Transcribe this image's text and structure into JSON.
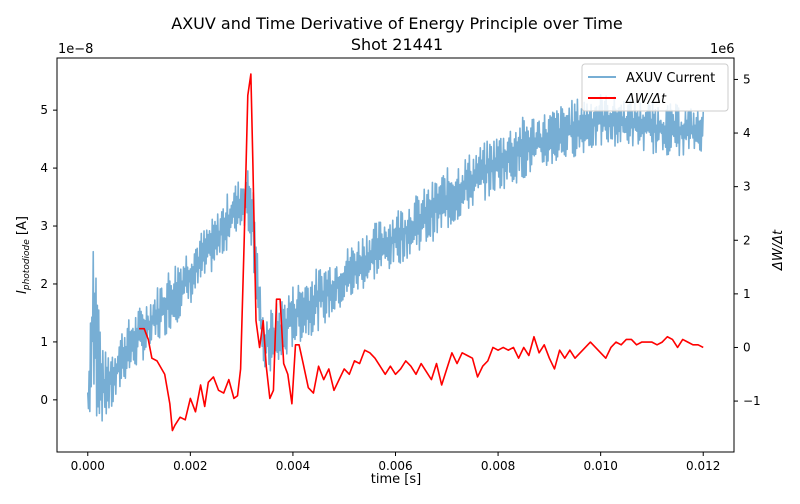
{
  "chart_data": {
    "type": "line",
    "title": "AXUV and Time Derivative of Energy Principle over Time",
    "subtitle": "Shot 21441",
    "xlabel": "time [s]",
    "ylabel": "I_photodiode [A]",
    "ylabel_main": "I",
    "ylabel_sub": "photodiode",
    "ylabel_unit": " [A]",
    "y2label": "ΔW/Δt",
    "y_offset_text": "1e−8",
    "y2_offset_text": "1e6",
    "xlim": [
      -0.0006,
      0.0126
    ],
    "ylim": [
      -0.9,
      5.9
    ],
    "y2lim": [
      -1.95,
      5.4
    ],
    "x_ticks": [
      0.0,
      0.002,
      0.004,
      0.006,
      0.008,
      0.01,
      0.012
    ],
    "x_tick_labels": [
      "0.000",
      "0.002",
      "0.004",
      "0.006",
      "0.008",
      "0.010",
      "0.012"
    ],
    "y_ticks": [
      0,
      1,
      2,
      3,
      4,
      5
    ],
    "y_tick_labels": [
      "0",
      "1",
      "2",
      "3",
      "4",
      "5"
    ],
    "y2_ticks": [
      -1,
      0,
      1,
      2,
      3,
      4,
      5
    ],
    "y2_tick_labels": [
      "−1",
      "0",
      "1",
      "2",
      "3",
      "4",
      "5"
    ],
    "legend_position": "top-right",
    "grid": false,
    "series": [
      {
        "name": "AXUV Current",
        "axis": "left",
        "color": "#77aed4",
        "style": "noisy-band",
        "x": [
          0.0,
          0.0001,
          0.0003,
          0.0005,
          0.0007,
          0.001,
          0.0013,
          0.0016,
          0.0019,
          0.0022,
          0.0025,
          0.0028,
          0.003,
          0.0031,
          0.0032,
          0.0034,
          0.0036,
          0.0038,
          0.004,
          0.0045,
          0.005,
          0.0055,
          0.006,
          0.0065,
          0.007,
          0.0075,
          0.008,
          0.0085,
          0.009,
          0.0095,
          0.01,
          0.0105,
          0.011,
          0.0115,
          0.012
        ],
        "low": [
          -0.45,
          -0.35,
          -0.4,
          -0.2,
          0.3,
          0.6,
          0.9,
          1.2,
          1.5,
          1.9,
          2.3,
          2.7,
          3.0,
          3.0,
          2.6,
          0.5,
          0.4,
          0.6,
          0.9,
          1.2,
          1.6,
          2.0,
          2.3,
          2.6,
          2.9,
          3.3,
          3.6,
          3.8,
          4.0,
          4.2,
          4.35,
          4.4,
          4.25,
          4.2,
          4.3
        ],
        "high": [
          0.3,
          3.3,
          0.8,
          1.0,
          1.3,
          1.6,
          1.9,
          2.3,
          2.6,
          2.9,
          3.2,
          3.7,
          3.85,
          4.0,
          4.0,
          1.5,
          1.6,
          1.8,
          2.0,
          2.3,
          2.6,
          3.0,
          3.3,
          3.6,
          4.0,
          4.3,
          4.6,
          4.9,
          5.0,
          5.2,
          5.3,
          5.2,
          5.15,
          5.1,
          5.0
        ]
      },
      {
        "name": "ΔW/Δt",
        "axis": "right",
        "color": "#ff0000",
        "x": [
          0.001,
          0.0011,
          0.00118,
          0.00125,
          0.00135,
          0.0015,
          0.0016,
          0.00165,
          0.0017,
          0.0018,
          0.0019,
          0.002,
          0.0021,
          0.0022,
          0.00228,
          0.00235,
          0.00245,
          0.00255,
          0.00265,
          0.00275,
          0.00285,
          0.00292,
          0.00298,
          0.00305,
          0.00312,
          0.00318,
          0.00322,
          0.00328,
          0.00335,
          0.00342,
          0.00348,
          0.00355,
          0.00362,
          0.00368,
          0.00375,
          0.00382,
          0.0039,
          0.00398,
          0.00405,
          0.00412,
          0.0042,
          0.0043,
          0.0044,
          0.0045,
          0.0046,
          0.0047,
          0.0048,
          0.0049,
          0.005,
          0.0051,
          0.0052,
          0.0053,
          0.0054,
          0.0055,
          0.0056,
          0.0057,
          0.0058,
          0.0059,
          0.006,
          0.0061,
          0.0062,
          0.0063,
          0.0064,
          0.0065,
          0.0066,
          0.0067,
          0.0068,
          0.0069,
          0.007,
          0.0071,
          0.0072,
          0.0073,
          0.0074,
          0.0075,
          0.0076,
          0.0077,
          0.0078,
          0.0079,
          0.008,
          0.0081,
          0.0082,
          0.0083,
          0.0084,
          0.0085,
          0.0086,
          0.0087,
          0.0088,
          0.0089,
          0.009,
          0.0091,
          0.0092,
          0.0093,
          0.0094,
          0.0095,
          0.0096,
          0.0097,
          0.0098,
          0.0099,
          0.01,
          0.0101,
          0.0102,
          0.0103,
          0.0104,
          0.0105,
          0.0106,
          0.0107,
          0.0108,
          0.0109,
          0.011,
          0.0111,
          0.0112,
          0.0113,
          0.0114,
          0.0115,
          0.0116,
          0.0117,
          0.0118,
          0.0119,
          0.012
        ],
        "y": [
          0.35,
          0.35,
          0.15,
          -0.2,
          -0.25,
          -0.5,
          -1.05,
          -1.55,
          -1.45,
          -1.3,
          -1.35,
          -0.95,
          -1.2,
          -0.7,
          -1.1,
          -0.65,
          -0.55,
          -0.8,
          -0.85,
          -0.6,
          -0.95,
          -0.9,
          -0.4,
          2.0,
          4.7,
          5.1,
          3.4,
          0.5,
          0.0,
          0.5,
          -0.35,
          -0.95,
          -0.8,
          0.9,
          0.9,
          -0.3,
          -0.5,
          -1.05,
          0.05,
          0.05,
          -0.3,
          -0.75,
          -0.85,
          -0.35,
          -0.6,
          -0.4,
          -0.8,
          -0.6,
          -0.4,
          -0.5,
          -0.25,
          -0.3,
          -0.05,
          -0.1,
          -0.2,
          -0.35,
          -0.5,
          -0.35,
          -0.5,
          -0.4,
          -0.25,
          -0.35,
          -0.5,
          -0.3,
          -0.45,
          -0.6,
          -0.3,
          -0.7,
          -0.4,
          -0.1,
          -0.3,
          -0.1,
          -0.15,
          -0.2,
          -0.55,
          -0.35,
          -0.25,
          0.0,
          -0.05,
          0.0,
          -0.05,
          0.0,
          -0.2,
          0.0,
          -0.15,
          0.2,
          -0.1,
          0.05,
          -0.2,
          -0.4,
          -0.05,
          -0.2,
          -0.05,
          -0.2,
          -0.1,
          0.0,
          0.1,
          0.0,
          -0.1,
          -0.2,
          0.0,
          0.1,
          0.05,
          0.15,
          0.15,
          0.05,
          0.1,
          0.1,
          0.1,
          0.05,
          0.1,
          0.2,
          0.15,
          0.0,
          0.15,
          0.1,
          0.05,
          0.05,
          0.0
        ]
      }
    ]
  }
}
